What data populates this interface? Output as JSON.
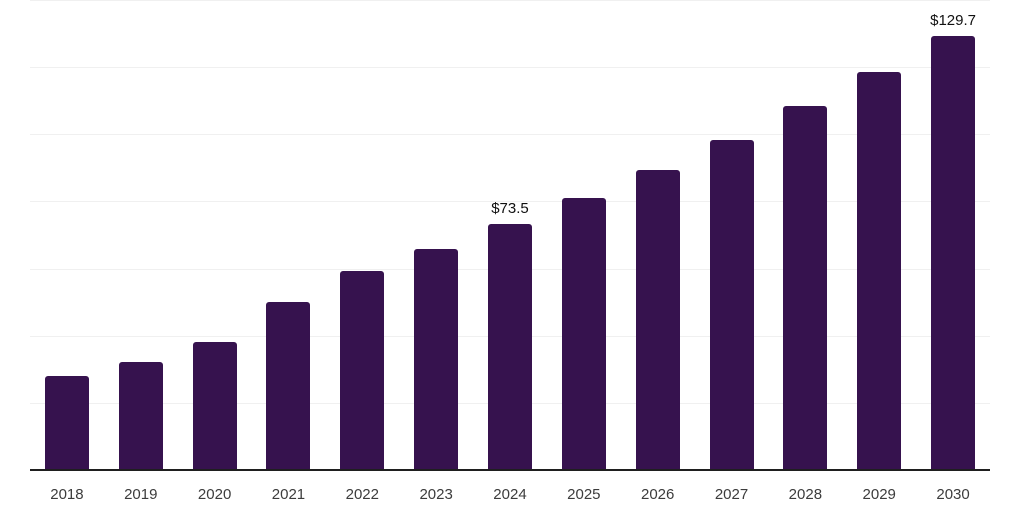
{
  "chart_data": {
    "type": "bar",
    "title": "",
    "xlabel": "",
    "ylabel": "",
    "categories": [
      "2018",
      "2019",
      "2020",
      "2021",
      "2022",
      "2023",
      "2024",
      "2025",
      "2026",
      "2027",
      "2028",
      "2029",
      "2030"
    ],
    "values": [
      28.3,
      32.5,
      38.4,
      50.4,
      59.7,
      66.2,
      73.5,
      81.2,
      89.7,
      98.7,
      108.6,
      119.0,
      129.7
    ],
    "data_labels": [
      "",
      "",
      "",
      "",
      "",
      "",
      "$73.5",
      "",
      "",
      "",
      "",
      "",
      "$129.7"
    ],
    "ylim": [
      0,
      140
    ],
    "grid_step": 20,
    "grid": "horizontal gridlines only, no y-axis tick labels",
    "legend": "none",
    "colors": {
      "bar": "#36124e",
      "axis_line": "#1f1f1f",
      "gridline": "#f0f0f0",
      "tick_label": "#3c3c3c",
      "data_label": "#111111",
      "background": "#ffffff"
    }
  }
}
